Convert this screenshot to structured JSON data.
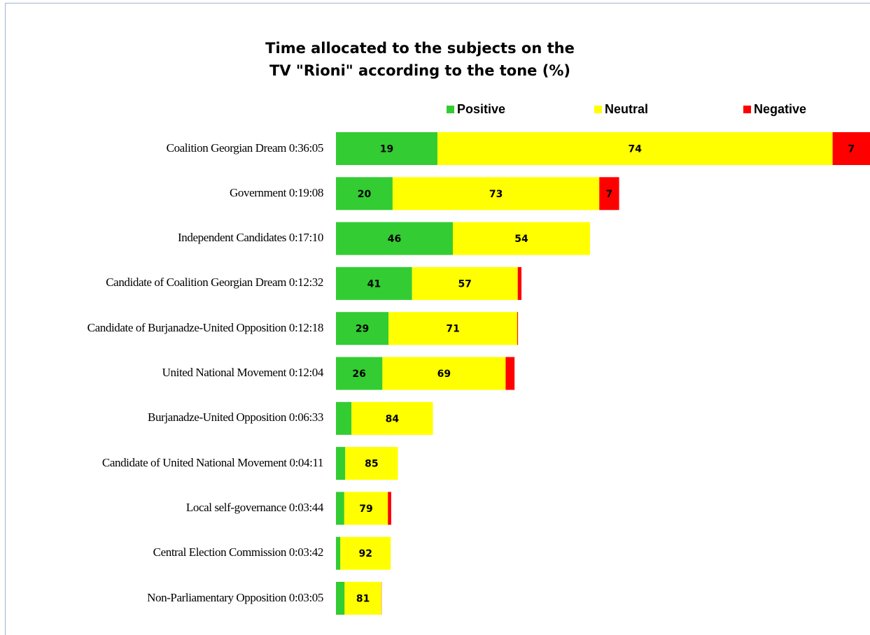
{
  "chart_data": {
    "type": "bar",
    "orientation": "horizontal-stacked",
    "title": "Time allocated to the subjects on the TV \"Rioni\" according to the tone (%)",
    "title_lines": [
      "Time allocated to the subjects on the",
      "TV \"Rioni\" according to the tone (%)"
    ],
    "legend_placement": "top",
    "grid": false,
    "colors": {
      "Positive": "#33cc33",
      "Neutral": "#ffff00",
      "Negative": "#ff0000"
    },
    "categories": [
      "Coalition Georgian Dream 0:36:05",
      "Government 0:19:08",
      "Independent Candidates 0:17:10",
      "Candidate of Coalition Georgian Dream 0:12:32",
      "Candidate of Burjanadze-United Opposition 0:12:18",
      "United National Movement 0:12:04",
      "Burjanadze-United Opposition 0:06:33",
      "Candidate of United National Movement 0:04:11",
      "Local self-governance 0:03:44",
      "Central Election Commission 0:03:42",
      "Non-Parliamentary Opposition 0:03:05"
    ],
    "durations_seconds": [
      2165,
      1148,
      1030,
      752,
      738,
      724,
      393,
      251,
      224,
      222,
      185
    ],
    "series": [
      {
        "name": "Positive",
        "values": [
          19,
          20,
          46,
          41,
          29,
          26,
          16,
          15,
          15,
          8,
          19
        ]
      },
      {
        "name": "Neutral",
        "values": [
          74,
          73,
          54,
          57,
          71,
          69,
          84,
          85,
          79,
          92,
          81
        ]
      },
      {
        "name": "Negative",
        "values": [
          7,
          7,
          0,
          2,
          0.4,
          5,
          0,
          0,
          6,
          0,
          0.5
        ]
      }
    ],
    "data_labels": [
      [
        "19",
        "74",
        "7"
      ],
      [
        "20",
        "73",
        "7"
      ],
      [
        "46",
        "54",
        ""
      ],
      [
        "41",
        "57",
        ""
      ],
      [
        "29",
        "71",
        ""
      ],
      [
        "26",
        "69",
        ""
      ],
      [
        "",
        "84",
        ""
      ],
      [
        "",
        "85",
        ""
      ],
      [
        "",
        "79",
        ""
      ],
      [
        "",
        "92",
        ""
      ],
      [
        "",
        "81",
        ""
      ]
    ]
  }
}
